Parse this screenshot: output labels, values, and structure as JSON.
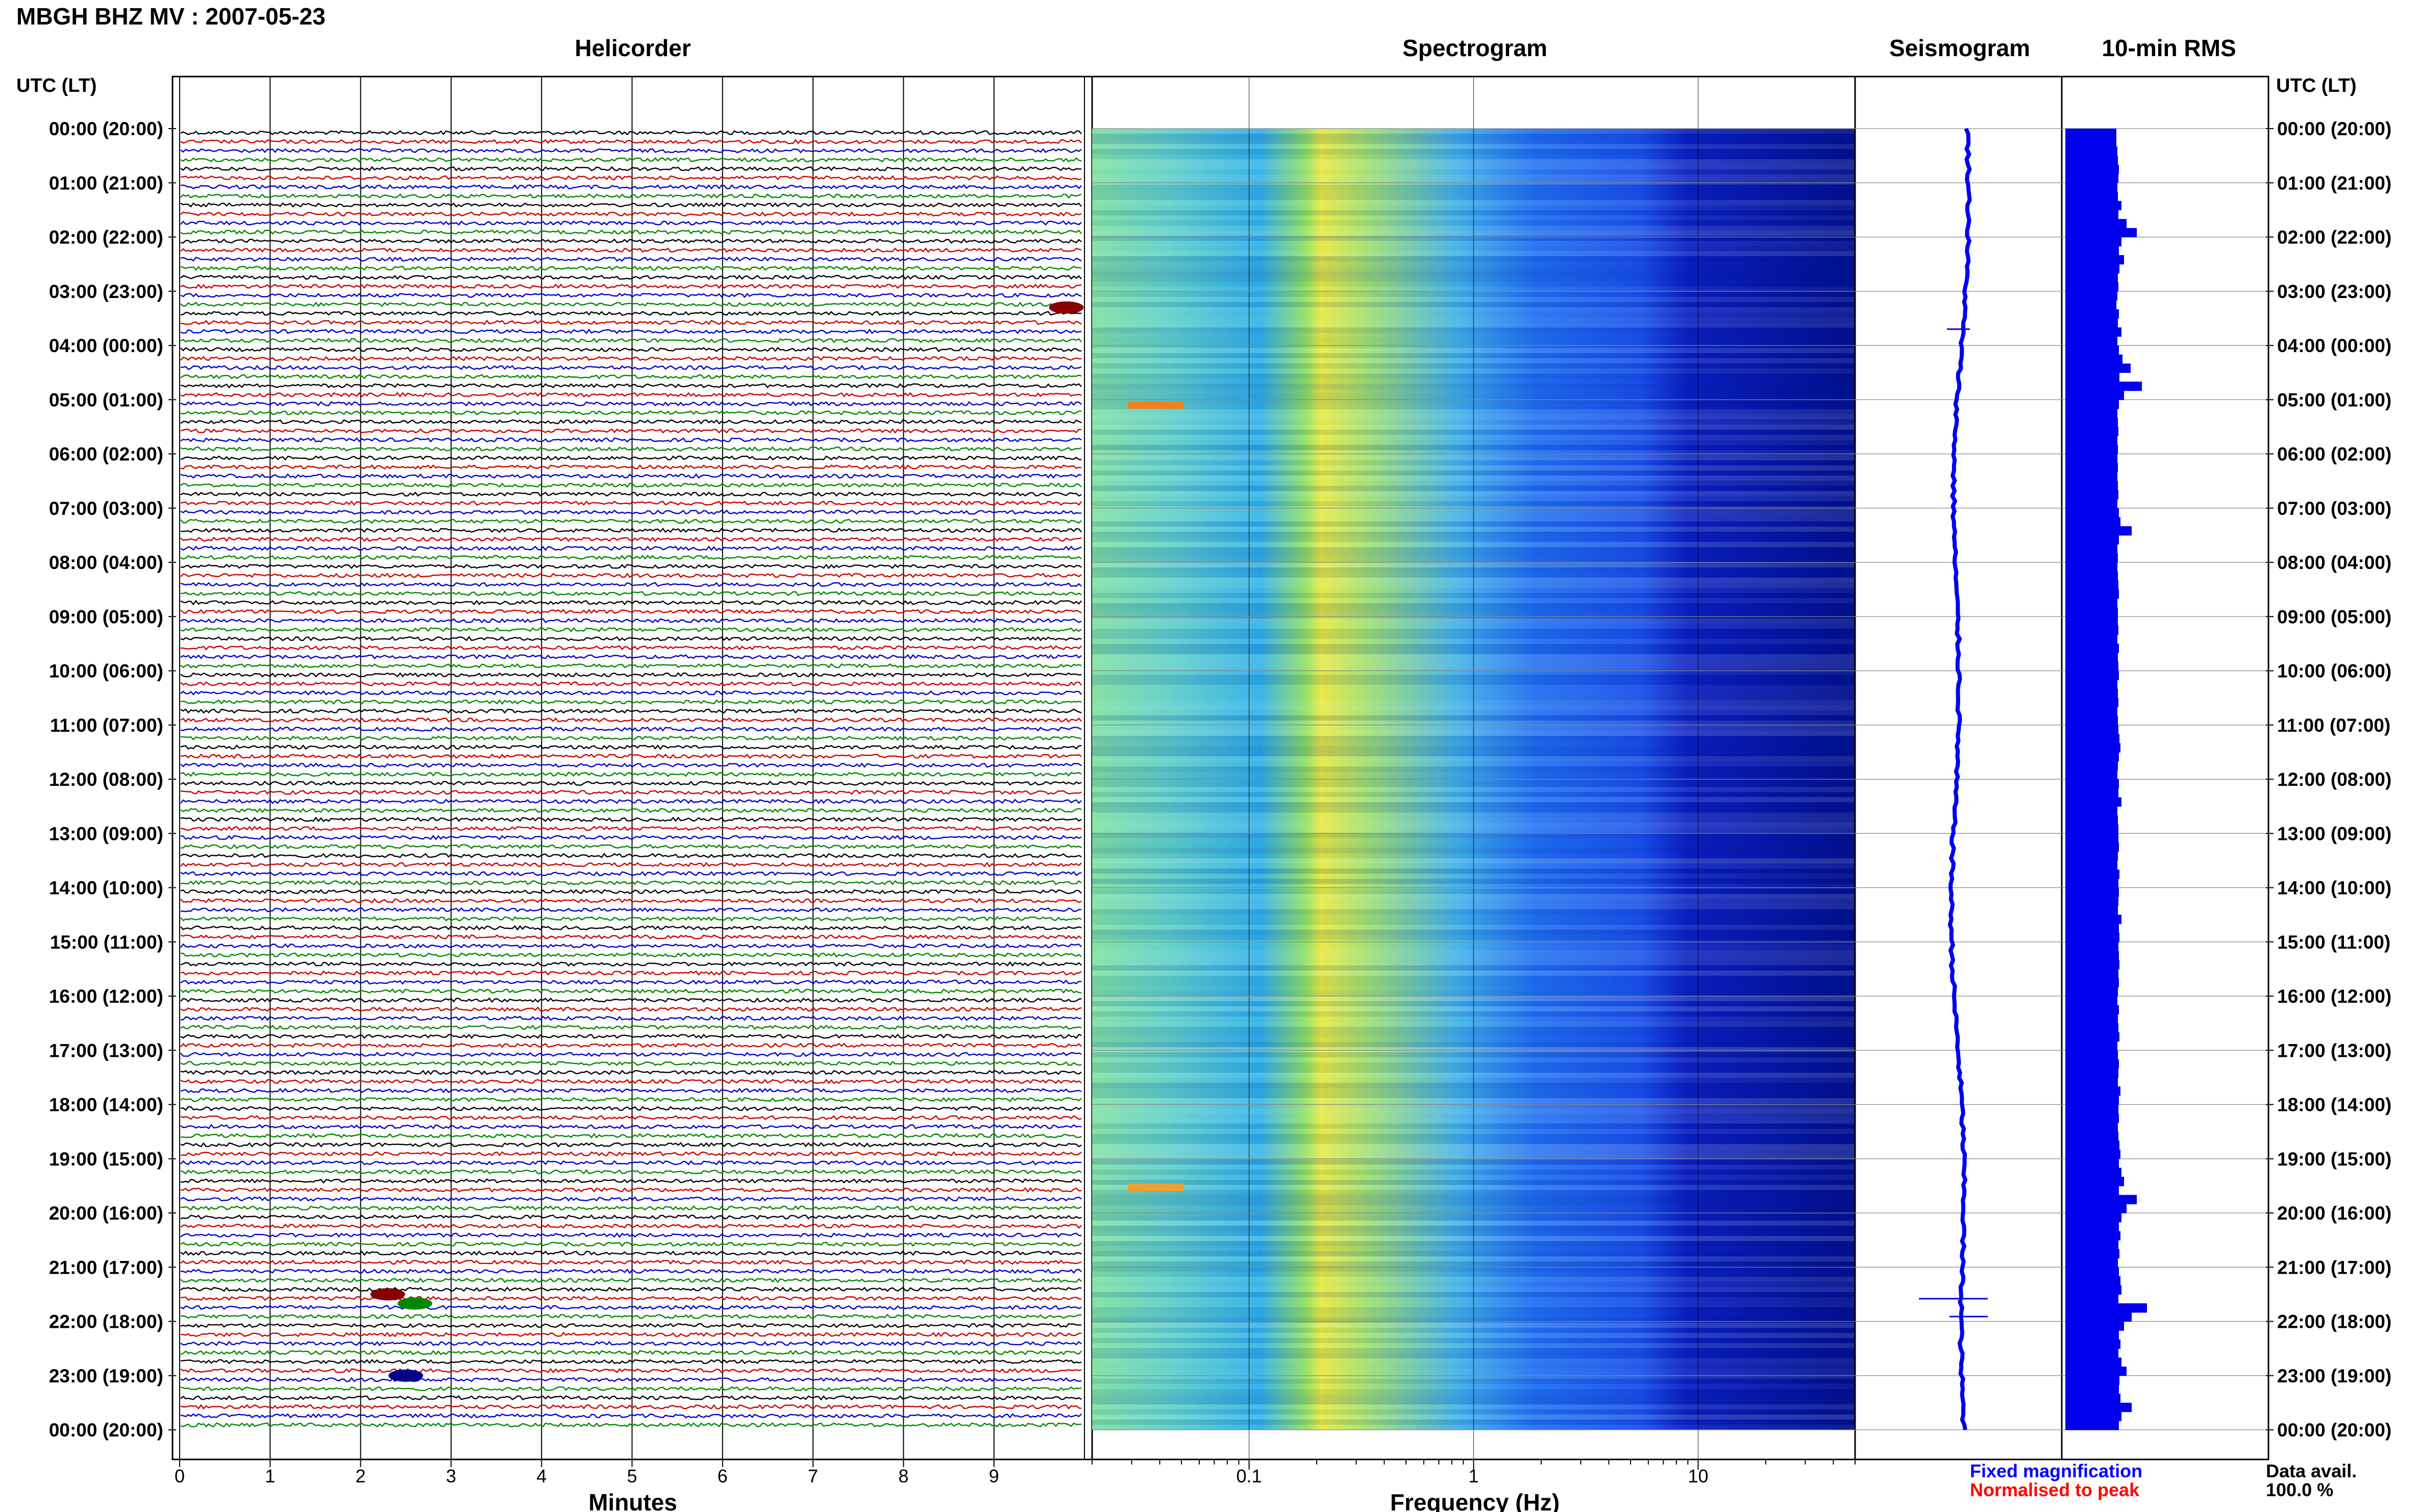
{
  "header": {
    "title": "MBGH BHZ MV : 2007-05-23"
  },
  "panels": {
    "helicorder": "Helicorder",
    "spectrogram": "Spectrogram",
    "seismogram": "Seismogram",
    "rms": "10-min RMS"
  },
  "axes": {
    "time_header": "UTC (LT)",
    "minutes_label": "Minutes",
    "frequency_label": "Frequency (Hz)"
  },
  "footer": {
    "fixed_magnification": "Fixed magnification",
    "normalised_to_peak": "Normalised to peak",
    "data_avail_label": "Data avail.",
    "data_avail_value": "100.0 %"
  },
  "colors": {
    "trace_cycle": [
      "#000000",
      "#cc0000",
      "#0000cc",
      "#008800"
    ],
    "rms_bar": "#0000ee",
    "fixed_magnification": "#0000ff",
    "normalised_to_peak": "#ff0000"
  },
  "chart_data": {
    "type": "heatmap",
    "title": "MBGH BHZ MV : 2007-05-23",
    "time_labels": [
      "00:00 (20:00)",
      "01:00 (21:00)",
      "02:00 (22:00)",
      "03:00 (23:00)",
      "04:00 (00:00)",
      "05:00 (01:00)",
      "06:00 (02:00)",
      "07:00 (03:00)",
      "08:00 (04:00)",
      "09:00 (05:00)",
      "10:00 (06:00)",
      "11:00 (07:00)",
      "12:00 (08:00)",
      "13:00 (09:00)",
      "14:00 (10:00)",
      "15:00 (11:00)",
      "16:00 (12:00)",
      "17:00 (13:00)",
      "18:00 (14:00)",
      "19:00 (15:00)",
      "20:00 (16:00)",
      "21:00 (17:00)",
      "22:00 (18:00)",
      "23:00 (19:00)",
      "00:00 (20:00)"
    ],
    "helicorder": {
      "xlabel": "Minutes",
      "xlim": [
        0,
        10
      ],
      "xticks": [
        0,
        1,
        2,
        3,
        4,
        5,
        6,
        7,
        8,
        9
      ],
      "traces_per_hour": 6,
      "events": [
        {
          "hour": 3.3,
          "minute": 9.8,
          "color": "#880000"
        },
        {
          "hour": 21.5,
          "minute": 2.3,
          "color": "#880000"
        },
        {
          "hour": 21.67,
          "minute": 2.6,
          "color": "#008800"
        },
        {
          "hour": 23.0,
          "minute": 2.5,
          "color": "#000088"
        }
      ]
    },
    "spectrogram": {
      "xlabel": "Frequency (Hz)",
      "xscale": "log",
      "xlim": [
        0.02,
        50
      ],
      "xticks": [
        0.1,
        1,
        10
      ],
      "xticklabels": [
        "0.1",
        "1",
        "10"
      ]
    },
    "rms": {
      "title": "10-min RMS",
      "values_relative": [
        1.0,
        1.0,
        1.02,
        1.03,
        1.05,
        1.04,
        1.02,
        1.03,
        1.1,
        1.04,
        1.2,
        1.4,
        1.1,
        1.05,
        1.15,
        1.06,
        1.03,
        1.04,
        1.02,
        1.0,
        1.05,
        1.03,
        1.1,
        1.02,
        1.05,
        1.12,
        1.28,
        1.06,
        1.5,
        1.15,
        1.05,
        1.02,
        1.03,
        1.04,
        1.02,
        1.03,
        1.02,
        1.03,
        1.02,
        1.03,
        1.04,
        1.02,
        1.05,
        1.08,
        1.3,
        1.05,
        1.02,
        1.03,
        1.02,
        1.03,
        1.04,
        1.05,
        1.02,
        1.03,
        1.03,
        1.04,
        1.02,
        1.05,
        1.03,
        1.04,
        1.05,
        1.02,
        1.03,
        1.04,
        1.02,
        1.03,
        1.04,
        1.06,
        1.08,
        1.05,
        1.03,
        1.02,
        1.05,
        1.04,
        1.1,
        1.02,
        1.03,
        1.04,
        1.04,
        1.05,
        1.03,
        1.02,
        1.06,
        1.04,
        1.05,
        1.04,
        1.03,
        1.1,
        1.05,
        1.06,
        1.04,
        1.05,
        1.06,
        1.04,
        1.05,
        1.03,
        1.02,
        1.05,
        1.03,
        1.04,
        1.06,
        1.02,
        1.03,
        1.05,
        1.04,
        1.03,
        1.08,
        1.05,
        1.04,
        1.05,
        1.03,
        1.04,
        1.06,
        1.08,
        1.05,
        1.1,
        1.15,
        1.05,
        1.4,
        1.2,
        1.1,
        1.05,
        1.08,
        1.04,
        1.06,
        1.03,
        1.05,
        1.08,
        1.1,
        1.04,
        1.6,
        1.3,
        1.15,
        1.05,
        1.08,
        1.04,
        1.1,
        1.2,
        1.06,
        1.05,
        1.08,
        1.3,
        1.1,
        1.05
      ]
    }
  }
}
